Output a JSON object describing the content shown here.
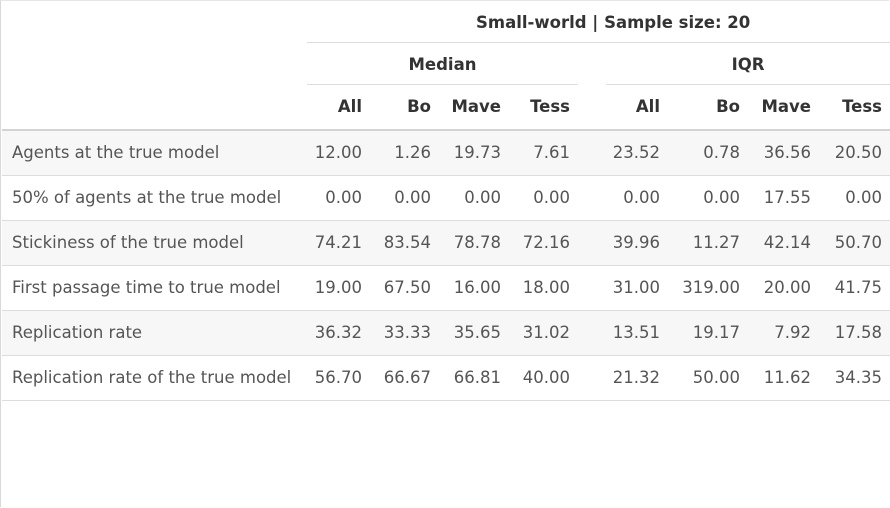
{
  "title": "Small-world | Sample size: 20",
  "groups": [
    "Median",
    "IQR"
  ],
  "columns": [
    "All",
    "Bo",
    "Mave",
    "Tess",
    "All",
    "Bo",
    "Mave",
    "Tess"
  ],
  "rows": [
    {
      "label": "Agents at the true model",
      "values": [
        "12.00",
        "1.26",
        "19.73",
        "7.61",
        "23.52",
        "0.78",
        "36.56",
        "20.50"
      ]
    },
    {
      "label": "50% of agents at the true model",
      "values": [
        "0.00",
        "0.00",
        "0.00",
        "0.00",
        "0.00",
        "0.00",
        "17.55",
        "0.00"
      ]
    },
    {
      "label": "Stickiness of the true model",
      "values": [
        "74.21",
        "83.54",
        "78.78",
        "72.16",
        "39.96",
        "11.27",
        "42.14",
        "50.70"
      ]
    },
    {
      "label": "First passage time to true model",
      "values": [
        "19.00",
        "67.50",
        "16.00",
        "18.00",
        "31.00",
        "319.00",
        "20.00",
        "41.75"
      ]
    },
    {
      "label": "Replication rate",
      "values": [
        "36.32",
        "33.33",
        "35.65",
        "31.02",
        "13.51",
        "19.17",
        "7.92",
        "17.58"
      ]
    },
    {
      "label": "Replication rate of the true model",
      "values": [
        "56.70",
        "66.67",
        "66.81",
        "40.00",
        "21.32",
        "50.00",
        "11.62",
        "34.35"
      ]
    }
  ]
}
